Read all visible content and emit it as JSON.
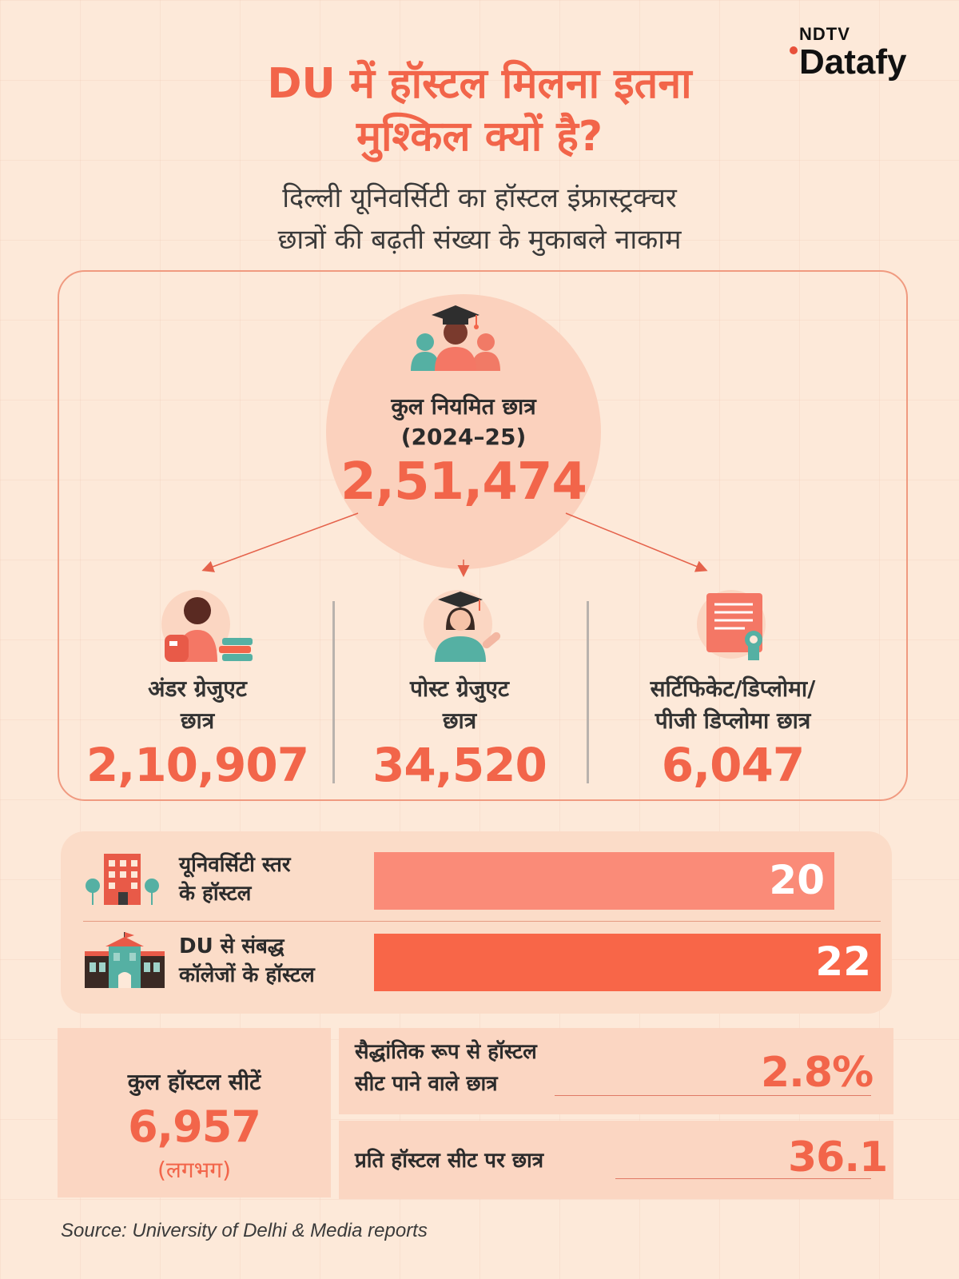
{
  "brand": {
    "top": "NDTV",
    "bottom": "Datafy"
  },
  "title": {
    "line1": "DU में हॉस्टल मिलना इतना",
    "line2": "मुश्किल क्यों है?"
  },
  "subtitle": {
    "line1": "दिल्ली यूनिवर्सिटी का हॉस्टल इंफ्रास्ट्रक्चर",
    "line2": "छात्रों की बढ़ती संख्या के मुकाबले नाकाम"
  },
  "students": {
    "total": {
      "label_line1": "कुल नियमित छात्र",
      "label_line2": "(2024–25)",
      "value": "2,51,474"
    },
    "undergrad": {
      "label_line1": "अंडर ग्रेजुएट",
      "label_line2": "छात्र",
      "value": "2,10,907"
    },
    "postgrad": {
      "label_line1": "पोस्ट ग्रेजुएट",
      "label_line2": "छात्र",
      "value": "34,520"
    },
    "certificate": {
      "label_line1": "सर्टिफिकेट/डिप्लोमा/",
      "label_line2": "पीजी डिप्लोमा छात्र",
      "value": "6,047"
    }
  },
  "hostels": {
    "university": {
      "label_line1": "यूनिवर्सिटी स्तर",
      "label_line2": "के हॉस्टल",
      "value": "20",
      "color": "#fa8b78"
    },
    "colleges": {
      "label_line1": "DU से संबद्ध",
      "label_line2": "कॉलेजों के हॉस्टल",
      "value": "22",
      "color": "#f86648"
    }
  },
  "seats": {
    "label": "कुल हॉस्टल सीटें",
    "value": "6,957",
    "note": "(लगभग)"
  },
  "stats": {
    "share": {
      "label_line1": "सैद्धांतिक रूप से हॉस्टल",
      "label_line2": "सीट पाने वाले छात्र",
      "value": "2.8%"
    },
    "ratio": {
      "label": "प्रति हॉस्टल सीट पर छात्र",
      "value": "36.1"
    }
  },
  "source": "Source: University of Delhi & Media reports",
  "colors": {
    "accent": "#f2654a",
    "background": "#fde9d9",
    "panel": "#fbd6c2"
  }
}
